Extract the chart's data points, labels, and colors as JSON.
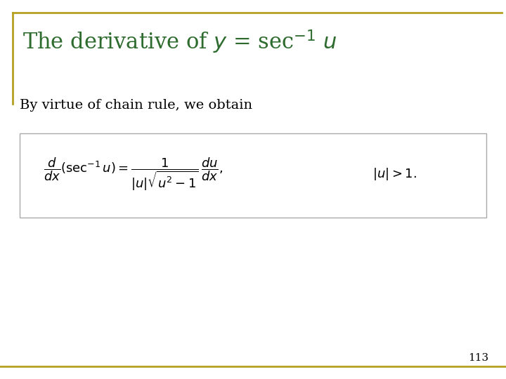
{
  "subtitle": "By virtue of chain rule, we obtain",
  "formula": "$\\dfrac{d}{dx}(\\sec^{-1} u) = \\dfrac{1}{|u|\\sqrt{u^2-1}}\\,\\dfrac{du}{dx},$",
  "condition": "$|u| > 1.$",
  "page_number": "113",
  "title_color": "#2e6b2e",
  "body_color": "#000000",
  "background_color": "#ffffff",
  "bar_color": "#b5a020",
  "box_edge_color": "#aaaaaa",
  "title_fontsize": 22,
  "subtitle_fontsize": 14,
  "formula_fontsize": 13,
  "page_fontsize": 11
}
